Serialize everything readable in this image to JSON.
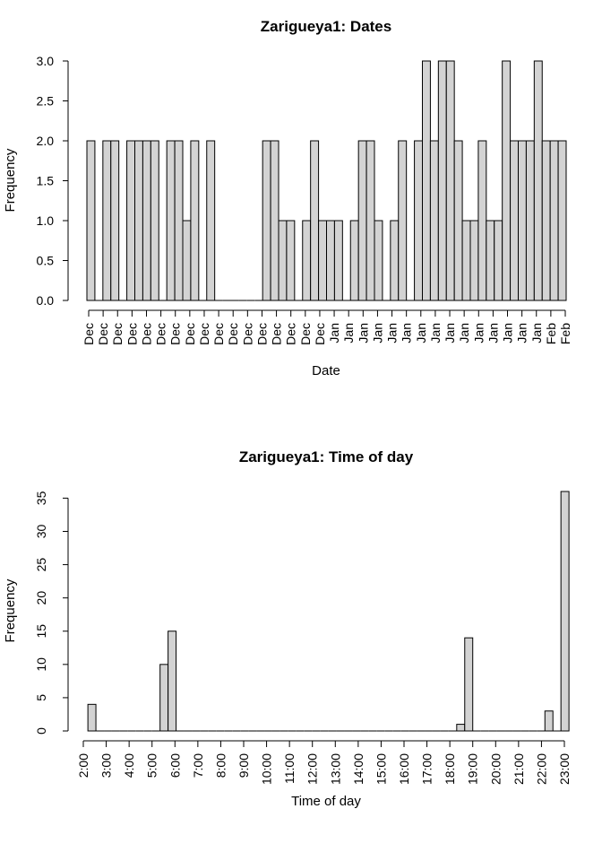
{
  "chart_data": [
    {
      "type": "bar",
      "title": "Zarigueya1: Dates",
      "xlabel": "Date",
      "ylabel": "Frequency",
      "ylim": [
        0,
        3.0
      ],
      "yticks": [
        "0.0",
        "0.5",
        "1.0",
        "1.5",
        "2.0",
        "2.5",
        "3.0"
      ],
      "xtick_labels": [
        "Dec",
        "Dec",
        "Dec",
        "Dec",
        "Dec",
        "Dec",
        "Dec",
        "Dec",
        "Dec",
        "Dec",
        "Dec",
        "Dec",
        "Dec",
        "Dec",
        "Dec",
        "Dec",
        "Dec",
        "Jan",
        "Jan",
        "Jan",
        "Jan",
        "Jan",
        "Jan",
        "Jan",
        "Jan",
        "Jan",
        "Jan",
        "Jan",
        "Jan",
        "Jan",
        "Jan",
        "Jan",
        "Feb",
        "Feb"
      ],
      "values": [
        2,
        0,
        2,
        2,
        0,
        2,
        2,
        2,
        2,
        0,
        2,
        2,
        1,
        2,
        0,
        2,
        0,
        0,
        0,
        0,
        0,
        0,
        2,
        2,
        1,
        1,
        0,
        1,
        2,
        1,
        1,
        1,
        0,
        1,
        2,
        2,
        1,
        0,
        1,
        2,
        0,
        2,
        3,
        2,
        3,
        3,
        2,
        1,
        1,
        2,
        1,
        1,
        3,
        2,
        2,
        2,
        3,
        2,
        2,
        2
      ],
      "bar_color": "#d3d3d3",
      "grid": false
    },
    {
      "type": "bar",
      "title": "Zarigueya1: Time of day",
      "xlabel": "Time of day",
      "ylabel": "Frequency",
      "ylim": [
        0,
        36
      ],
      "yticks": [
        "0",
        "5",
        "10",
        "15",
        "20",
        "25",
        "30",
        "35"
      ],
      "xtick_labels": [
        "2:00",
        "3:00",
        "4:00",
        "5:00",
        "6:00",
        "7:00",
        "8:00",
        "9:00",
        "10:00",
        "11:00",
        "12:00",
        "13:00",
        "14:00",
        "15:00",
        "16:00",
        "17:00",
        "18:00",
        "19:00",
        "20:00",
        "21:00",
        "22:00",
        "23:00"
      ],
      "x_range": [
        2.0,
        23.0
      ],
      "bin_width": 0.35,
      "values": [
        4,
        0,
        0,
        0,
        0,
        0,
        0,
        0,
        0,
        0,
        0,
        0,
        0,
        0,
        0,
        0,
        0,
        0,
        0,
        0,
        0,
        0,
        0,
        0,
        0,
        0,
        0,
        0,
        0,
        0,
        0,
        0,
        0,
        0,
        0,
        0,
        0,
        0,
        0,
        0,
        0,
        0,
        0,
        0,
        0,
        0,
        0,
        0,
        0,
        0,
        0,
        0,
        0,
        0,
        0,
        0,
        0,
        0,
        0,
        0
      ],
      "highlight": {
        "9": 10,
        "10": 15,
        "46": 1,
        "47": 14,
        "57": 3,
        "59": 36
      },
      "bar_color": "#d3d3d3",
      "grid": false
    }
  ]
}
